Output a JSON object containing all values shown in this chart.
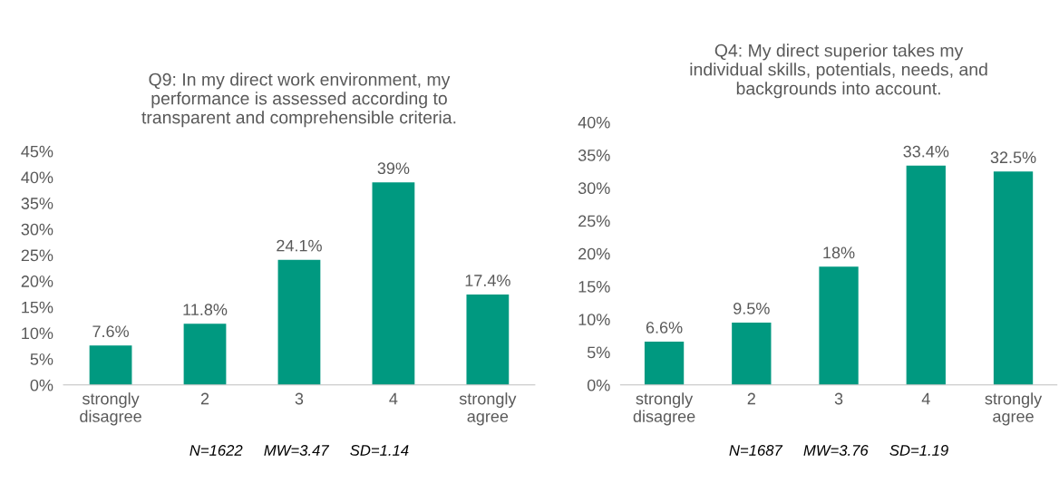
{
  "chart_data": [
    {
      "type": "bar",
      "title": "Q9: In my direct work environment, my\nperformance is assessed according to\ntransparent and comprehensible criteria.",
      "categories": [
        "strongly\ndisagree",
        "2",
        "3",
        "4",
        "strongly\nagree"
      ],
      "values": [
        7.6,
        11.8,
        24.1,
        39,
        17.4
      ],
      "value_labels": [
        "7.6%",
        "11.8%",
        "24.1%",
        "39%",
        "17.4%"
      ],
      "color": "#009980",
      "ylim": [
        0,
        45
      ],
      "yticks": [
        {
          "value": 0,
          "label": "0%"
        },
        {
          "value": 5,
          "label": "5%"
        },
        {
          "value": 10,
          "label": "10%"
        },
        {
          "value": 15,
          "label": "15%"
        },
        {
          "value": 20,
          "label": "20%"
        },
        {
          "value": 25,
          "label": "25%"
        },
        {
          "value": 30,
          "label": "30%"
        },
        {
          "value": 35,
          "label": "35%"
        },
        {
          "value": 40,
          "label": "40%"
        },
        {
          "value": 45,
          "label": "45%"
        }
      ],
      "grid": false,
      "annotations": [
        "N=1622     MW=3.47     SD=1.14"
      ]
    },
    {
      "type": "bar",
      "title": "Q4: My direct superior takes my\nindividual skills, potentials, needs, and\nbackgrounds into account.",
      "categories": [
        "strongly\ndisagree",
        "2",
        "3",
        "4",
        "strongly\nagree"
      ],
      "values": [
        6.6,
        9.5,
        18,
        33.4,
        32.5
      ],
      "value_labels": [
        "6.6%",
        "9.5%",
        "18%",
        "33.4%",
        "32.5%"
      ],
      "color": "#009980",
      "ylim": [
        0,
        40
      ],
      "yticks": [
        {
          "value": 0,
          "label": "0%"
        },
        {
          "value": 5,
          "label": "5%"
        },
        {
          "value": 10,
          "label": "10%"
        },
        {
          "value": 15,
          "label": "15%"
        },
        {
          "value": 20,
          "label": "20%"
        },
        {
          "value": 25,
          "label": "25%"
        },
        {
          "value": 30,
          "label": "30%"
        },
        {
          "value": 35,
          "label": "35%"
        },
        {
          "value": 40,
          "label": "40%"
        }
      ],
      "grid": false,
      "annotations": [
        "N=1687     MW=3.76     SD=1.19"
      ]
    }
  ]
}
